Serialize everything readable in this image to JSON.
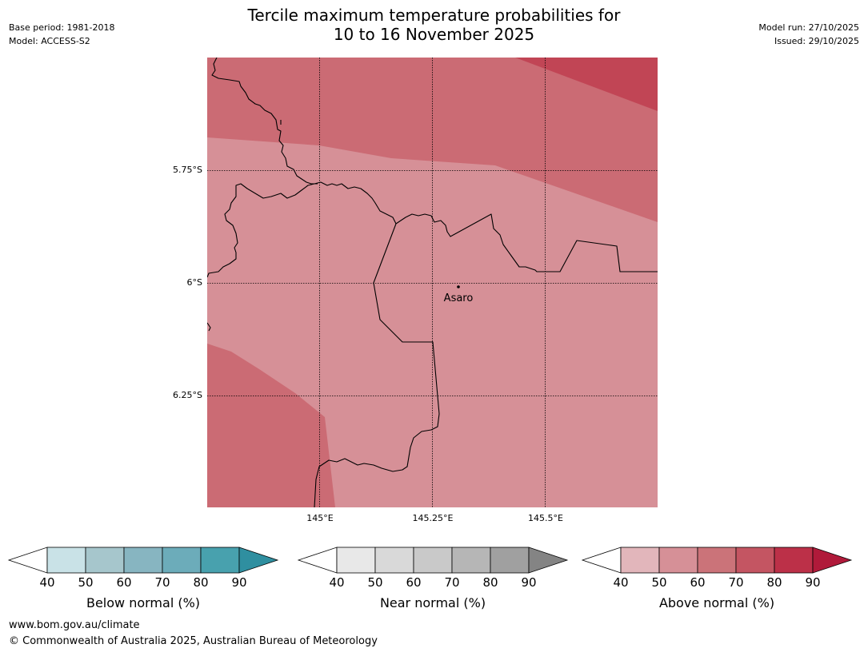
{
  "header": {
    "title_line1": "Tercile maximum temperature probabilities for",
    "title_line2": "10 to 16 November 2025",
    "base_period": "Base period: 1981-2018",
    "model": "Model: ACCESS-S2",
    "model_run": "Model run: 27/10/2025",
    "issued": "Issued: 29/10/2025"
  },
  "map": {
    "lat_labels": [
      "5.75°S",
      "6°S",
      "6.25°S"
    ],
    "lon_labels": [
      "145°E",
      "145.25°E",
      "145.5°E"
    ],
    "place_label": "Asaro",
    "fill_colors": {
      "above_50_60": "#d69097",
      "above_60_70": "#cb6b74",
      "above_80_90": "#c14555"
    }
  },
  "colorbars": [
    {
      "label": "Below normal (%)",
      "ticks": [
        "40",
        "50",
        "60",
        "70",
        "80",
        "90"
      ],
      "colors": [
        "#c9e2e7",
        "#a6c6cc",
        "#87b5c1",
        "#6cacba",
        "#48a1ae",
        "#2f8fa0"
      ]
    },
    {
      "label": "Near normal (%)",
      "ticks": [
        "40",
        "50",
        "60",
        "70",
        "80",
        "90"
      ],
      "colors": [
        "#e8e8e8",
        "#d9d9d9",
        "#c9c9c9",
        "#b6b6b6",
        "#a0a0a0",
        "#848484"
      ]
    },
    {
      "label": "Above normal (%)",
      "ticks": [
        "40",
        "50",
        "60",
        "70",
        "80",
        "90"
      ],
      "colors": [
        "#e2b6bb",
        "#d69097",
        "#cb7379",
        "#c45562",
        "#bc3048",
        "#b01a3a"
      ]
    }
  ],
  "footer": {
    "website": "www.bom.gov.au/climate",
    "copyright": "© Commonwealth of Australia 2025, Australian Bureau of Meteorology"
  }
}
